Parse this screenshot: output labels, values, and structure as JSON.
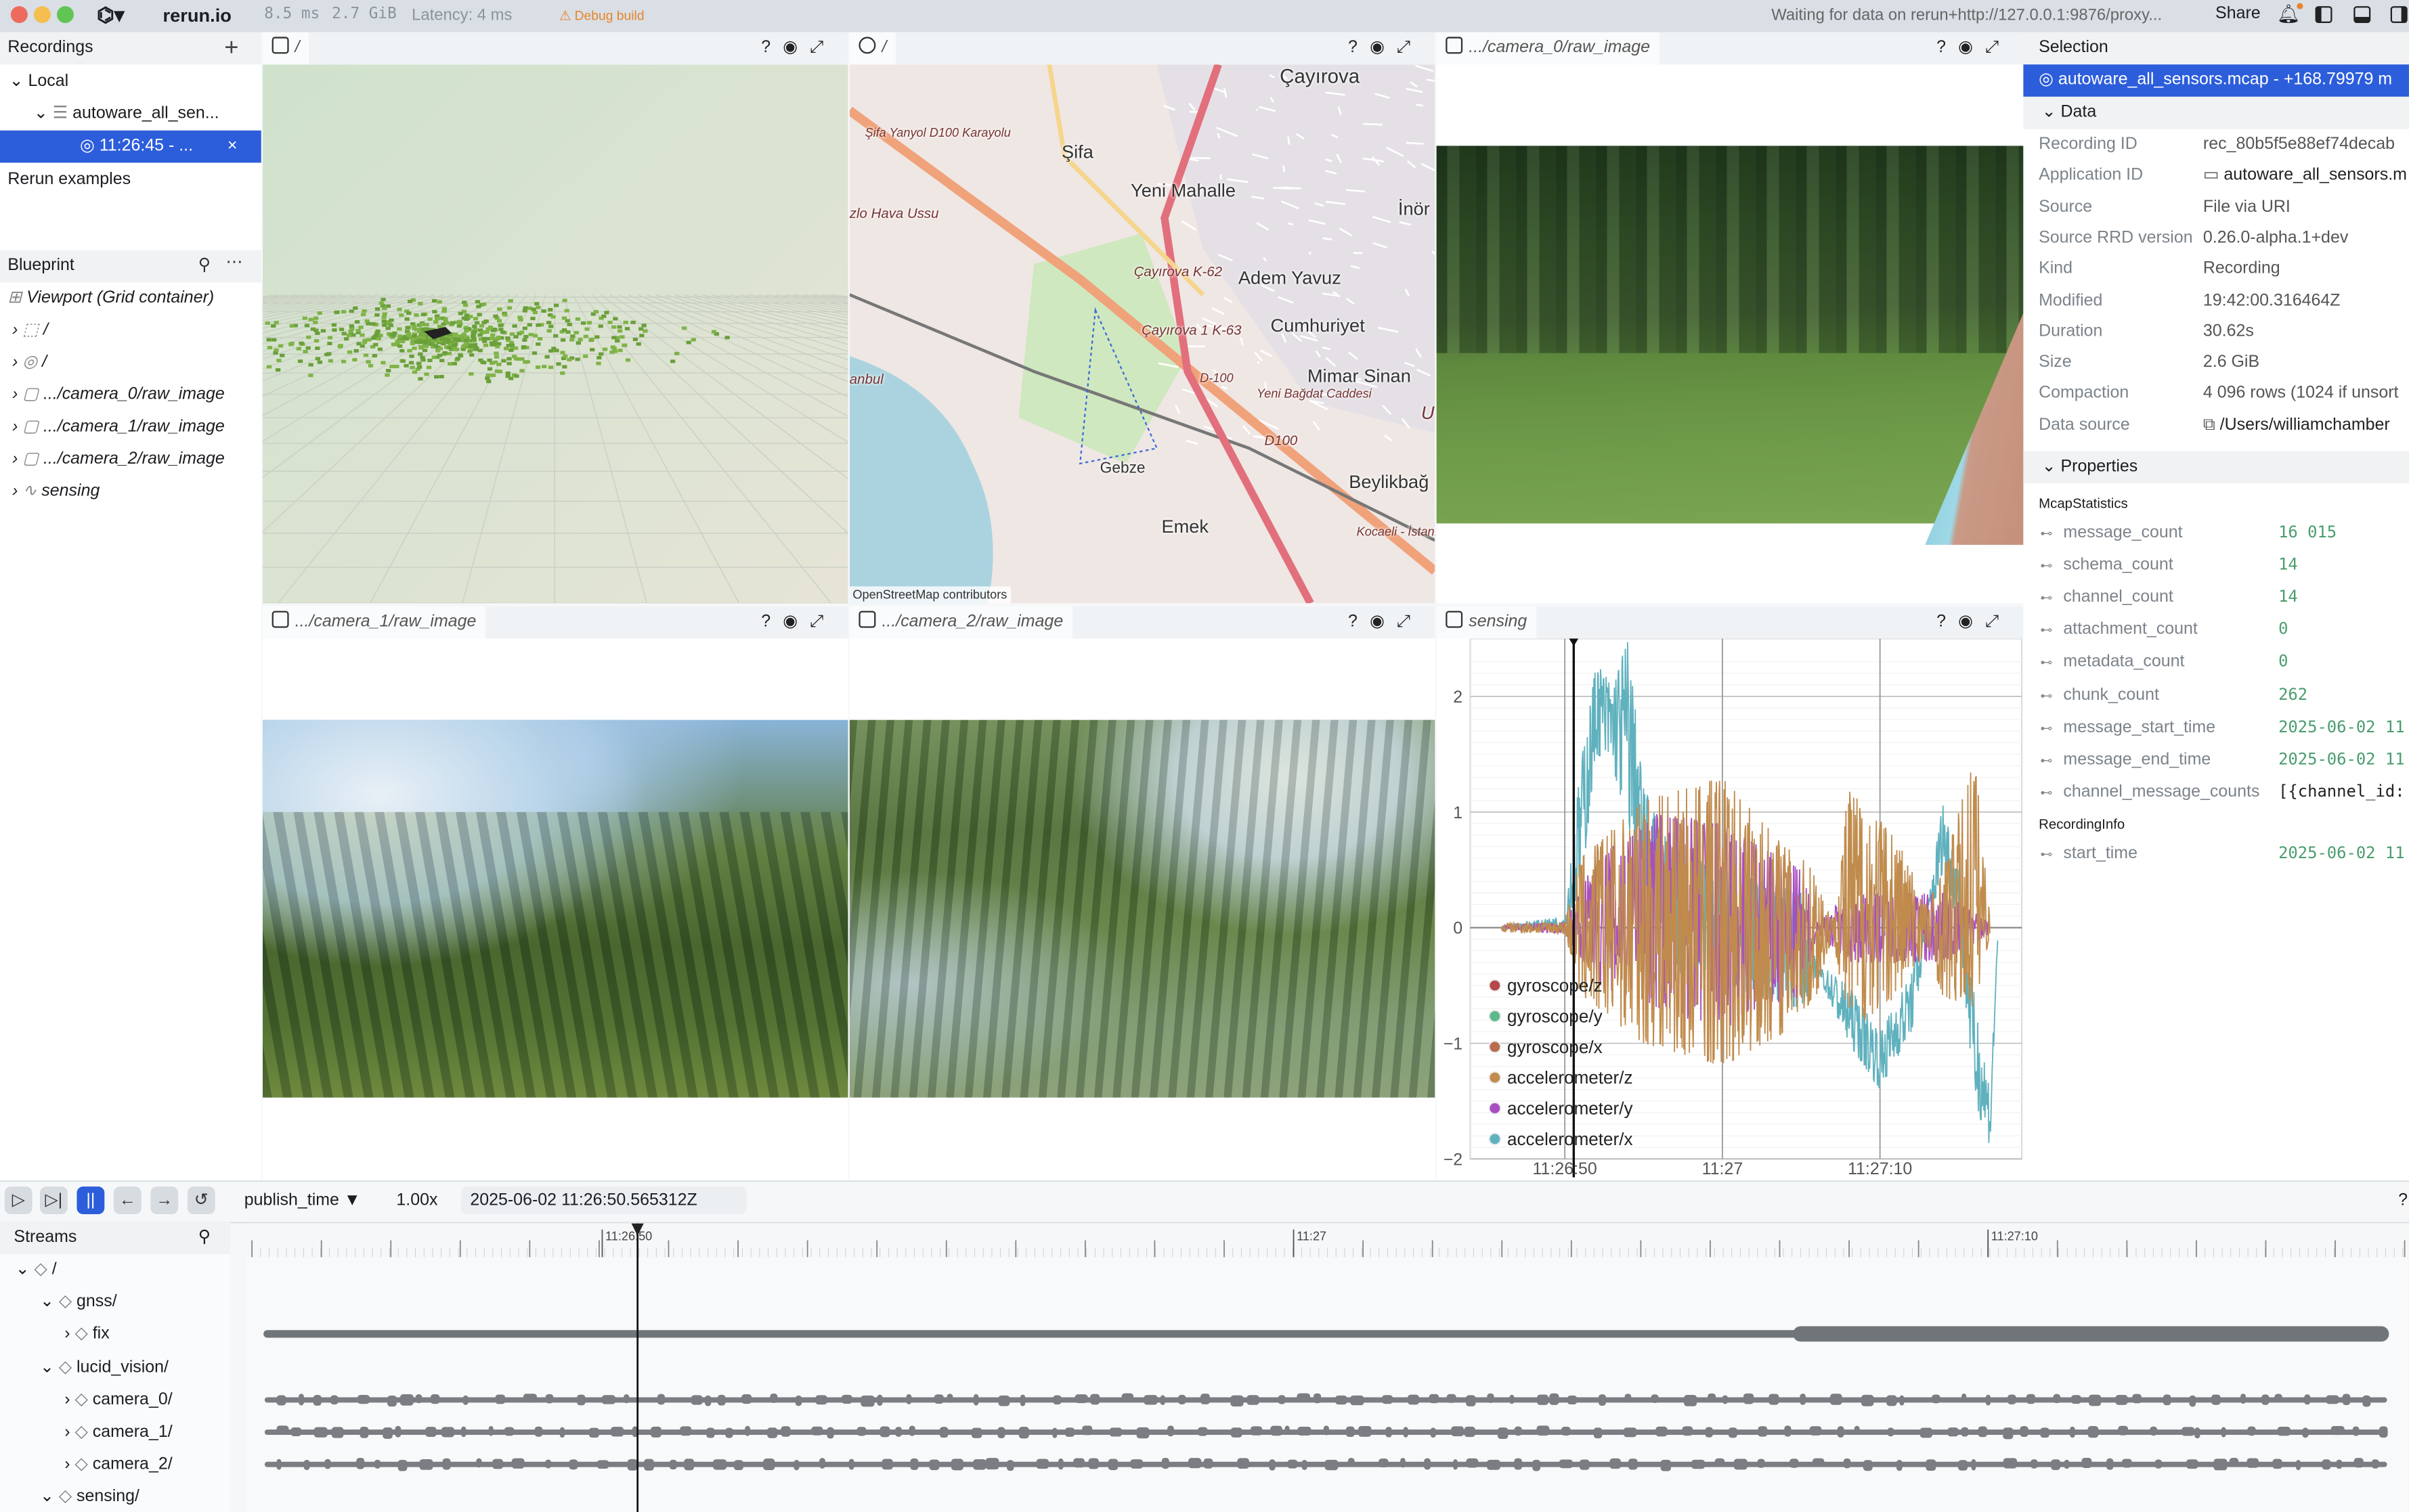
{
  "topbar": {
    "app_name": "rerun.io",
    "frame_time": "8.5 ms",
    "memory": "2.7 GiB",
    "latency": "Latency: 4 ms",
    "debug_badge": "⚠ Debug build",
    "status": "Waiting for data on rerun+http://127.0.0.1:9876/proxy...",
    "share_label": "Share",
    "colors": {
      "close": "#ec6a5e",
      "minimize": "#f4bf4f",
      "maximize": "#61c554",
      "debug": "#e8832a"
    }
  },
  "recordings": {
    "title": "Recordings",
    "add_icon": "plus-icon",
    "local_label": "Local",
    "dataset_label": "autoware_all_sen...",
    "selected_recording": "11:26:45 - ...",
    "examples_label": "Rerun examples"
  },
  "blueprint": {
    "title": "Blueprint",
    "viewport_label": "Viewport (Grid container)",
    "items": [
      {
        "icon": "3d-icon",
        "label": "/"
      },
      {
        "icon": "map-icon",
        "label": "/"
      },
      {
        "icon": "image-icon",
        "label": ".../camera_0/raw_image"
      },
      {
        "icon": "image-icon",
        "label": ".../camera_1/raw_image"
      },
      {
        "icon": "image-icon",
        "label": ".../camera_2/raw_image"
      },
      {
        "icon": "timeseries-icon",
        "label": "sensing"
      }
    ]
  },
  "views": {
    "spatial3d": {
      "title": "/"
    },
    "map": {
      "title": "/",
      "attribution": "OpenStreetMap contributors",
      "labels": [
        "Çayırova",
        "Şifa",
        "Yeni Mahalle",
        "İnör",
        "Adem Yavuz",
        "Cumhuriyet",
        "Mimar Sinan",
        "Beylikbağ",
        "Emek",
        "Gebze",
        "Şifa Yanyol D100 Karayolu",
        "Çayırova K-62",
        "Çayırova 1 K-63",
        "D-100",
        "zlo Hava Ussu",
        "Yeni Bağdat Caddesi",
        "Kocaeli - İstanbul",
        "D100",
        "U",
        "anbul"
      ]
    },
    "camera0": {
      "title": ".../camera_0/raw_image"
    },
    "camera1": {
      "title": ".../camera_1/raw_image"
    },
    "camera2": {
      "title": ".../camera_2/raw_image"
    },
    "sensing": {
      "title": "sensing"
    }
  },
  "chart_data": {
    "type": "line",
    "title": "",
    "xlabel": "",
    "ylabel": "",
    "x_range": [
      "11:26:44",
      "11:27:19"
    ],
    "y_range": [
      -2,
      2.5
    ],
    "x_ticks": [
      "11:26:50",
      "11:27",
      "11:27:10"
    ],
    "y_ticks": [
      2,
      1,
      0,
      -1,
      -2
    ],
    "y_tick_labels": [
      "2",
      "1",
      "0",
      "−1",
      "−2"
    ],
    "grid": true,
    "legend_position": "bottom-left",
    "cursor_time": "11:26:50.565",
    "series": [
      {
        "name": "gyroscope/z",
        "color": "#b5484c",
        "envelope": []
      },
      {
        "name": "gyroscope/y",
        "color": "#5db98b",
        "envelope": []
      },
      {
        "name": "gyroscope/x",
        "color": "#b86d4e",
        "envelope": []
      },
      {
        "name": "accelerometer/z",
        "color": "#c08b4c",
        "envelope": [
          [
            "11:26:46",
            -0.04,
            0.04
          ],
          [
            "11:26:50",
            -0.05,
            0.05
          ],
          [
            "11:26:51",
            -0.6,
            0.6
          ],
          [
            "11:26:55",
            -1.0,
            1.1
          ],
          [
            "11:27:00",
            -1.2,
            1.3
          ],
          [
            "11:27:04",
            -0.9,
            0.7
          ],
          [
            "11:27:06",
            -0.6,
            0.5
          ],
          [
            "11:27:07",
            -0.05,
            0.05
          ],
          [
            "11:27:08",
            -0.9,
            1.2
          ],
          [
            "11:27:11",
            -0.6,
            0.8
          ],
          [
            "11:27:13",
            -0.2,
            0.2
          ],
          [
            "11:27:14",
            -0.6,
            0.5
          ],
          [
            "11:27:16",
            -0.7,
            1.5
          ],
          [
            "11:27:17",
            -0.05,
            0.05
          ]
        ]
      },
      {
        "name": "accelerometer/y",
        "color": "#a84ec2",
        "envelope": [
          [
            "11:26:46",
            -0.02,
            0.02
          ],
          [
            "11:26:50",
            -0.05,
            0.05
          ],
          [
            "11:26:52",
            -0.5,
            0.6
          ],
          [
            "11:26:56",
            -0.7,
            1.0
          ],
          [
            "11:27:00",
            -0.9,
            0.9
          ],
          [
            "11:27:05",
            -0.6,
            0.5
          ],
          [
            "11:27:06",
            -0.05,
            0.05
          ],
          [
            "11:27:08",
            -0.3,
            0.3
          ],
          [
            "11:27:12",
            -0.3,
            0.3
          ],
          [
            "11:27:14",
            -0.3,
            0.3
          ],
          [
            "11:27:17",
            -0.05,
            0.05
          ]
        ]
      },
      {
        "name": "accelerometer/x",
        "color": "#60b1be",
        "envelope": [
          [
            "11:26:46",
            -0.02,
            0.02
          ],
          [
            "11:26:50",
            0.0,
            0.1
          ],
          [
            "11:26:51",
            0.3,
            1.4
          ],
          [
            "11:26:52",
            1.5,
            2.3
          ],
          [
            "11:26:53",
            1.4,
            2.1
          ],
          [
            "11:26:54",
            0.9,
            2.5
          ],
          [
            "11:26:55",
            0.4,
            1.2
          ],
          [
            "11:26:57",
            -0.4,
            0.7
          ],
          [
            "11:27:00",
            -0.5,
            0.5
          ],
          [
            "11:27:05",
            -0.7,
            0.3
          ],
          [
            "11:27:06",
            -0.4,
            -0.3
          ],
          [
            "11:27:08",
            -1.0,
            -0.5
          ],
          [
            "11:27:10",
            -1.4,
            -0.9
          ],
          [
            "11:27:12",
            -0.9,
            -0.4
          ],
          [
            "11:27:13",
            -0.1,
            0.2
          ],
          [
            "11:27:14",
            0.5,
            1.1
          ],
          [
            "11:27:15",
            0.0,
            0.5
          ],
          [
            "11:27:16",
            -1.5,
            -0.6
          ],
          [
            "11:27:17",
            -1.9,
            -1.4
          ],
          [
            "11:27:17.5",
            0,
            0
          ]
        ]
      }
    ]
  },
  "selection": {
    "title": "Selection",
    "selected_item": "autoware_all_sensors.mcap - +168.79979 m",
    "data_section": "Data",
    "data": [
      {
        "key": "Recording ID",
        "value": "rec_80b5f5e88ef74decab"
      },
      {
        "key": "Application ID",
        "value": "autoware_all_sensors.m"
      },
      {
        "key": "Source",
        "value": "File via URI"
      },
      {
        "key": "Source RRD version",
        "value": "0.26.0-alpha.1+dev"
      },
      {
        "key": "Kind",
        "value": "Recording"
      },
      {
        "key": "Modified",
        "value": "19:42:00.316464Z"
      },
      {
        "key": "Duration",
        "value": "30.62s"
      },
      {
        "key": "Size",
        "value": "2.6 GiB"
      },
      {
        "key": "Compaction",
        "value": "4 096 rows (1024 if unsort"
      },
      {
        "key": "Data source",
        "value": "/Users/williamchamber"
      }
    ],
    "properties_section": "Properties",
    "groups": [
      {
        "name": "McapStatistics",
        "props": [
          {
            "key": "message_count",
            "value": "16 015"
          },
          {
            "key": "schema_count",
            "value": "14"
          },
          {
            "key": "channel_count",
            "value": "14"
          },
          {
            "key": "attachment_count",
            "value": "0"
          },
          {
            "key": "metadata_count",
            "value": "0"
          },
          {
            "key": "chunk_count",
            "value": "262"
          },
          {
            "key": "message_start_time",
            "value": "2025-06-02 11"
          },
          {
            "key": "message_end_time",
            "value": "2025-06-02 11"
          },
          {
            "key": "channel_message_counts",
            "value": "[{channel_id:"
          }
        ]
      },
      {
        "name": "RecordingInfo",
        "props": [
          {
            "key": "start_time",
            "value": "2025-06-02 11"
          }
        ]
      }
    ]
  },
  "timeline": {
    "timeline_name": "publish_time",
    "speed": "1.00x",
    "current_time": "2025-06-02 11:26:50.565312Z",
    "help": "?",
    "tick_labels": [
      "11:26:50",
      "11:27",
      "11:27:10"
    ],
    "streams_title": "Streams",
    "streams": [
      {
        "label": "/",
        "depth": 0,
        "expanded": true
      },
      {
        "label": "gnss/",
        "depth": 1,
        "expanded": true
      },
      {
        "label": "fix",
        "depth": 2,
        "expanded": false
      },
      {
        "label": "lucid_vision/",
        "depth": 1,
        "expanded": true
      },
      {
        "label": "camera_0/",
        "depth": 2,
        "expanded": false
      },
      {
        "label": "camera_1/",
        "depth": 2,
        "expanded": false
      },
      {
        "label": "camera_2/",
        "depth": 2,
        "expanded": false
      },
      {
        "label": "sensing/",
        "depth": 1,
        "expanded": true
      }
    ]
  }
}
